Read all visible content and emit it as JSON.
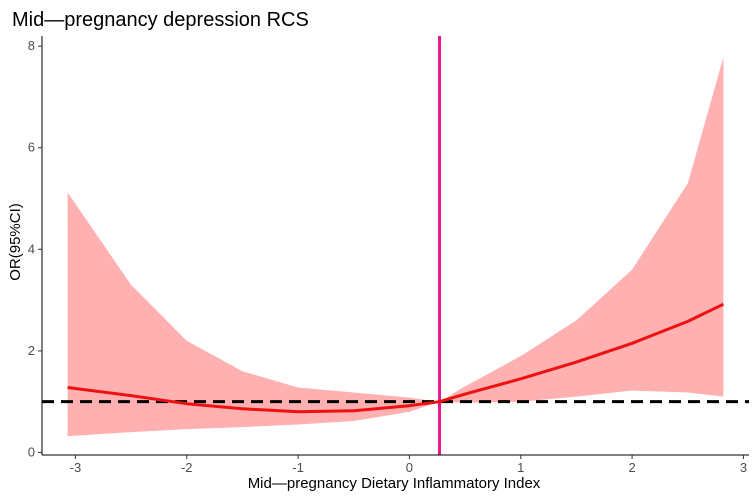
{
  "chart_data": {
    "type": "line",
    "title": "Mid—pregnancy depression RCS",
    "xlabel": "Mid—pregnancy Dietary Inflammatory Index",
    "ylabel": "OR(95%CI)",
    "xlim": [
      -3.3,
      3.05
    ],
    "ylim": [
      -0.05,
      8.2
    ],
    "x_ticks": [
      "-3",
      "-2",
      "-1",
      "0",
      "1",
      "2",
      "3"
    ],
    "y_ticks": [
      "0",
      "2",
      "4",
      "6",
      "8"
    ],
    "grid": false,
    "reference_line_y": 1.0,
    "vertical_line_x": 0.27,
    "colors": {
      "line": "#ee1111",
      "band": "#ffb0b0",
      "vline": "#e8198b",
      "refline": "#000000"
    },
    "series": [
      {
        "x": [
          -3.07,
          -2.5,
          -2.0,
          -1.5,
          -1.0,
          -0.5,
          0.0,
          0.27,
          0.5,
          1.0,
          1.5,
          2.0,
          2.5,
          2.82
        ],
        "y": [
          1.28,
          1.12,
          0.96,
          0.86,
          0.8,
          0.82,
          0.92,
          1.0,
          1.15,
          1.45,
          1.78,
          2.15,
          2.58,
          2.92
        ],
        "lower": [
          0.32,
          0.4,
          0.46,
          0.5,
          0.55,
          0.62,
          0.8,
          1.0,
          0.98,
          1.0,
          1.1,
          1.22,
          1.18,
          1.1
        ],
        "upper": [
          5.12,
          3.3,
          2.2,
          1.6,
          1.28,
          1.18,
          1.08,
          1.0,
          1.3,
          1.9,
          2.6,
          3.6,
          5.3,
          7.78
        ]
      }
    ]
  }
}
